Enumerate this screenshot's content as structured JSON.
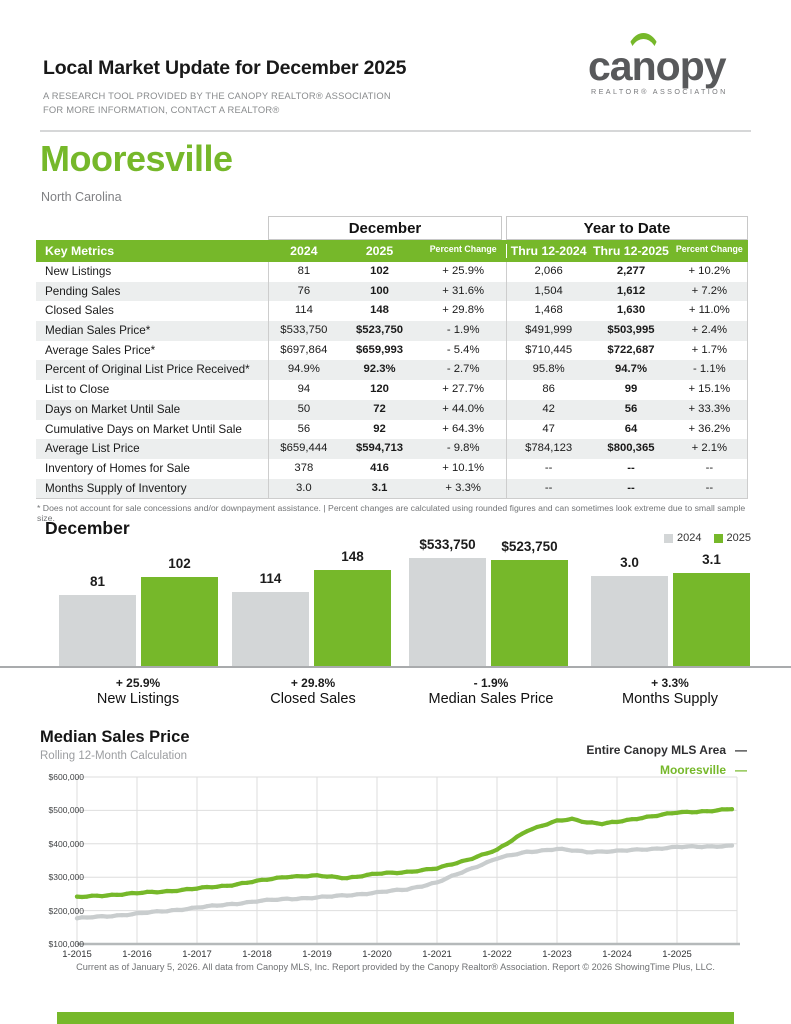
{
  "accent_color": "#76b82a",
  "header": {
    "title": "Local Market Update for December 2025",
    "subtitle_line1": "A RESEARCH TOOL PROVIDED BY THE CANOPY REALTOR® ASSOCIATION",
    "subtitle_line2": "FOR MORE INFORMATION, CONTACT A REALTOR®",
    "logo": {
      "word_left": "ca",
      "word_mid": "n",
      "word_right": "opy",
      "tagline": "REALTOR® ASSOCIATION"
    }
  },
  "location": {
    "city": "Mooresville",
    "state": "North Carolina"
  },
  "metrics_table": {
    "group_headers": [
      "December",
      "Year to Date"
    ],
    "key_metrics_label": "Key Metrics",
    "columns": [
      "2024",
      "2025",
      "Percent Change",
      "Thru 12-2024",
      "Thru 12-2025",
      "Percent Change"
    ],
    "rows": [
      {
        "metric": "New Listings",
        "dec_2024": "81",
        "dec_2025": "102",
        "dec_change": "+ 25.9%",
        "ytd_2024": "2,066",
        "ytd_2025": "2,277",
        "ytd_change": "+ 10.2%"
      },
      {
        "metric": "Pending Sales",
        "dec_2024": "76",
        "dec_2025": "100",
        "dec_change": "+ 31.6%",
        "ytd_2024": "1,504",
        "ytd_2025": "1,612",
        "ytd_change": "+ 7.2%"
      },
      {
        "metric": "Closed Sales",
        "dec_2024": "114",
        "dec_2025": "148",
        "dec_change": "+ 29.8%",
        "ytd_2024": "1,468",
        "ytd_2025": "1,630",
        "ytd_change": "+ 11.0%"
      },
      {
        "metric": "Median Sales Price*",
        "dec_2024": "$533,750",
        "dec_2025": "$523,750",
        "dec_change": "- 1.9%",
        "ytd_2024": "$491,999",
        "ytd_2025": "$503,995",
        "ytd_change": "+ 2.4%"
      },
      {
        "metric": "Average Sales Price*",
        "dec_2024": "$697,864",
        "dec_2025": "$659,993",
        "dec_change": "- 5.4%",
        "ytd_2024": "$710,445",
        "ytd_2025": "$722,687",
        "ytd_change": "+ 1.7%"
      },
      {
        "metric": "Percent of Original List Price Received*",
        "dec_2024": "94.9%",
        "dec_2025": "92.3%",
        "dec_change": "- 2.7%",
        "ytd_2024": "95.8%",
        "ytd_2025": "94.7%",
        "ytd_change": "- 1.1%"
      },
      {
        "metric": "List to Close",
        "dec_2024": "94",
        "dec_2025": "120",
        "dec_change": "+ 27.7%",
        "ytd_2024": "86",
        "ytd_2025": "99",
        "ytd_change": "+ 15.1%"
      },
      {
        "metric": "Days on Market Until Sale",
        "dec_2024": "50",
        "dec_2025": "72",
        "dec_change": "+ 44.0%",
        "ytd_2024": "42",
        "ytd_2025": "56",
        "ytd_change": "+ 33.3%"
      },
      {
        "metric": "Cumulative Days on Market Until Sale",
        "dec_2024": "56",
        "dec_2025": "92",
        "dec_change": "+ 64.3%",
        "ytd_2024": "47",
        "ytd_2025": "64",
        "ytd_change": "+ 36.2%"
      },
      {
        "metric": "Average List Price",
        "dec_2024": "$659,444",
        "dec_2025": "$594,713",
        "dec_change": "- 9.8%",
        "ytd_2024": "$784,123",
        "ytd_2025": "$800,365",
        "ytd_change": "+ 2.1%"
      },
      {
        "metric": "Inventory of Homes for Sale",
        "dec_2024": "378",
        "dec_2025": "416",
        "dec_change": "+ 10.1%",
        "ytd_2024": "--",
        "ytd_2025": "--",
        "ytd_change": "--"
      },
      {
        "metric": "Months Supply of Inventory",
        "dec_2024": "3.0",
        "dec_2025": "3.1",
        "dec_change": "+ 3.3%",
        "ytd_2024": "--",
        "ytd_2025": "--",
        "ytd_change": "--"
      }
    ],
    "footnote": "* Does not account for sale concessions and/or downpayment assistance.  |  Percent changes are calculated using rounded figures and can sometimes look extreme due to small sample size."
  },
  "chart_data": [
    {
      "type": "bar",
      "title": "December",
      "legend": [
        "2024",
        "2025"
      ],
      "series_colors": {
        "2024": "#d3d6d7",
        "2025": "#76b82a"
      },
      "groups": [
        {
          "category": "New Listings",
          "change": "+ 25.9%",
          "values": [
            81,
            102
          ],
          "labels": [
            "81",
            "102"
          ]
        },
        {
          "category": "Closed Sales",
          "change": "+ 29.8%",
          "values": [
            114,
            148
          ],
          "labels": [
            "114",
            "148"
          ]
        },
        {
          "category": "Median Sales Price",
          "change": "- 1.9%",
          "values": [
            533750,
            523750
          ],
          "labels": [
            "$533,750",
            "$523,750"
          ]
        },
        {
          "category": "Months Supply",
          "change": "+ 3.3%",
          "values": [
            3.0,
            3.1
          ],
          "labels": [
            "3.0",
            "3.1"
          ]
        }
      ]
    },
    {
      "type": "line",
      "title": "Median Sales Price",
      "subtitle": "Rolling 12-Month Calculation",
      "legend": [
        {
          "label": "Entire Canopy MLS Area",
          "color": "#2f2f31"
        },
        {
          "label": "Mooresville",
          "color": "#76b82a"
        }
      ],
      "y_ticks": [
        "$600,000",
        "$500,000",
        "$400,000",
        "$300,000",
        "$200,000",
        "$100,000"
      ],
      "ylim": [
        100000,
        600000
      ],
      "x_ticks": [
        "1-2015",
        "1-2016",
        "1-2017",
        "1-2018",
        "1-2019",
        "1-2020",
        "1-2021",
        "1-2022",
        "1-2023",
        "1-2024",
        "1-2025"
      ],
      "x_range_months": 132,
      "series": [
        {
          "name": "Entire Canopy MLS Area",
          "color": "#c9cdce",
          "points_month_value": [
            [
              0,
              177000
            ],
            [
              6,
              183000
            ],
            [
              12,
              191000
            ],
            [
              18,
              199000
            ],
            [
              24,
              209000
            ],
            [
              30,
              218000
            ],
            [
              36,
              228000
            ],
            [
              42,
              235000
            ],
            [
              48,
              239000
            ],
            [
              54,
              246000
            ],
            [
              60,
              254000
            ],
            [
              66,
              264000
            ],
            [
              72,
              284000
            ],
            [
              78,
              321000
            ],
            [
              84,
              356000
            ],
            [
              90,
              376000
            ],
            [
              96,
              384000
            ],
            [
              102,
              376000
            ],
            [
              108,
              378000
            ],
            [
              114,
              384000
            ],
            [
              120,
              390000
            ],
            [
              126,
              392000
            ],
            [
              131,
              394000
            ]
          ]
        },
        {
          "name": "Mooresville",
          "color": "#76b82a",
          "points_month_value": [
            [
              0,
              240000
            ],
            [
              6,
              246000
            ],
            [
              12,
              252000
            ],
            [
              18,
              258000
            ],
            [
              24,
              266000
            ],
            [
              30,
              275000
            ],
            [
              36,
              288000
            ],
            [
              42,
              302000
            ],
            [
              48,
              304000
            ],
            [
              54,
              298000
            ],
            [
              60,
              310000
            ],
            [
              66,
              316000
            ],
            [
              72,
              326000
            ],
            [
              78,
              352000
            ],
            [
              84,
              381000
            ],
            [
              90,
              440000
            ],
            [
              96,
              468000
            ],
            [
              99,
              474000
            ],
            [
              102,
              465000
            ],
            [
              105,
              460000
            ],
            [
              108,
              465000
            ],
            [
              114,
              481000
            ],
            [
              120,
              493000
            ],
            [
              126,
              498000
            ],
            [
              131,
              504000
            ]
          ]
        }
      ]
    }
  ],
  "footer": {
    "text": "Current as of January 5, 2026. All data from Canopy MLS, Inc. Report provided by the Canopy Realtor® Association. Report © 2026 ShowingTime Plus, LLC."
  }
}
